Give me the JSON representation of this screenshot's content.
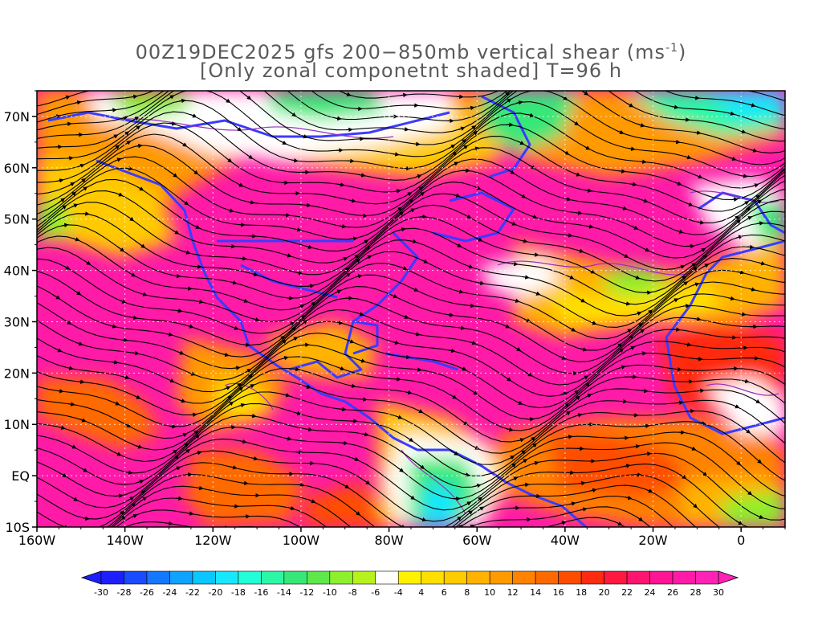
{
  "title": {
    "line1": "00Z19DEC2025 gfs 200−850mb vertical shear (ms",
    "line1_sup": "-1",
    "line1_end": ")",
    "line2": "[Only zonal componetnt shaded] T=96 h"
  },
  "map": {
    "lon_range": [
      -160,
      10
    ],
    "lat_range": [
      -10,
      75
    ],
    "lat_labels": [
      "70N",
      "60N",
      "50N",
      "40N",
      "30N",
      "20N",
      "10N",
      "EQ",
      "10S"
    ],
    "lat_values": [
      70,
      60,
      50,
      40,
      30,
      20,
      10,
      0,
      -10
    ],
    "lon_labels": [
      "160W",
      "140W",
      "120W",
      "100W",
      "80W",
      "60W",
      "40W",
      "20W",
      "0"
    ],
    "lon_values": [
      -160,
      -140,
      -120,
      -100,
      -80,
      -60,
      -40,
      -20,
      0
    ],
    "colors": {
      "coast": "#3b3bff",
      "streamline": "#000000",
      "contour": "#9a2fbf",
      "frame": "#000000"
    }
  },
  "colorbar": {
    "labels": [
      "-30",
      "-28",
      "-26",
      "-24",
      "-22",
      "-20",
      "-18",
      "-16",
      "-14",
      "-12",
      "-10",
      "-8",
      "-6",
      "-4",
      "4",
      "6",
      "8",
      "10",
      "12",
      "14",
      "16",
      "18",
      "20",
      "22",
      "24",
      "26",
      "28",
      "30"
    ],
    "colors": [
      "#1e1eff",
      "#1a4bff",
      "#1477ff",
      "#0ea3ff",
      "#0bc6ff",
      "#17e8ff",
      "#22ffd6",
      "#2cf7a6",
      "#35e878",
      "#5ee84a",
      "#8df02c",
      "#b8f21c",
      "#ffffff",
      "#fff200",
      "#ffdf00",
      "#ffca00",
      "#ffb200",
      "#ff9a00",
      "#ff8200",
      "#ff6a00",
      "#ff4d00",
      "#ff2a10",
      "#ff1840",
      "#ff1470",
      "#ff1495",
      "#ff1aa8",
      "#ff22b4"
    ],
    "arrow_left_color": "#1e1eff",
    "arrow_right_color": "#ff22b4"
  }
}
